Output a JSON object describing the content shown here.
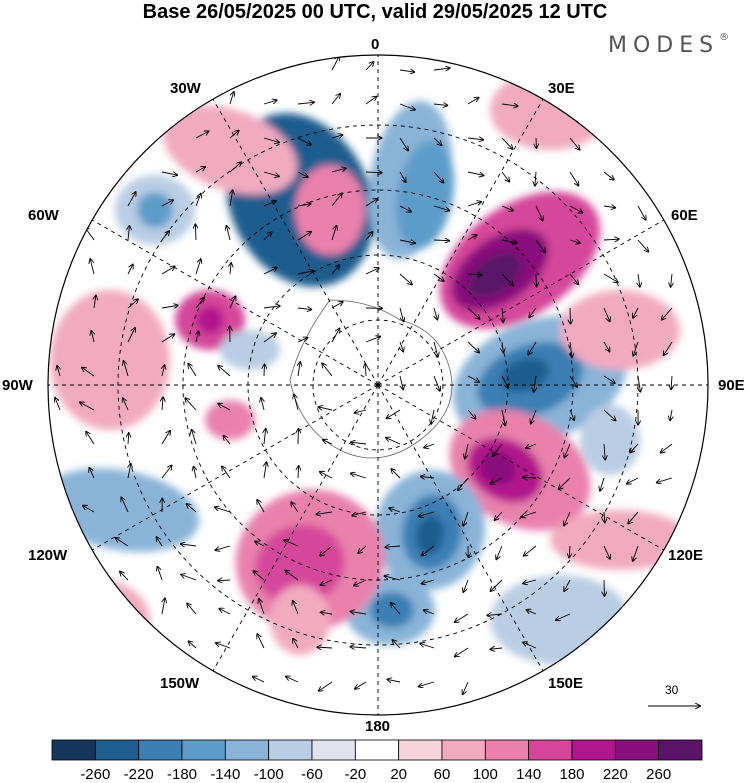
{
  "header": {
    "title": "Base 26/05/2025 00 UTC, valid 29/05/2025 12 UTC",
    "brand": "MODES",
    "brand_mark": "®"
  },
  "map": {
    "projection": "south-polar-stereographic",
    "longitude_labels": {
      "lon0": "0",
      "lon30e": "30E",
      "lon60e": "60E",
      "lon90e": "90E",
      "lon120e": "120E",
      "lon150e": "150E",
      "lon180": "180",
      "lon150w": "150W",
      "lon120w": "120W",
      "lon90w": "90W",
      "lon60w": "60W",
      "lon30w": "30W"
    },
    "reference_vector_label": "30"
  },
  "colorbar": {
    "colors": [
      "#15365a",
      "#1f5d8e",
      "#3b7fb4",
      "#5d9cc9",
      "#89b4d8",
      "#b9cde4",
      "#e2e2ef",
      "#ffffff",
      "#f7d4dc",
      "#f2aac0",
      "#e981ab",
      "#d5469a",
      "#b2168c",
      "#89107c",
      "#5a1468"
    ],
    "labels": [
      "-260",
      "-220",
      "-180",
      "-140",
      "-100",
      "-60",
      "-20",
      "20",
      "60",
      "100",
      "140",
      "180",
      "220",
      "260"
    ]
  }
}
